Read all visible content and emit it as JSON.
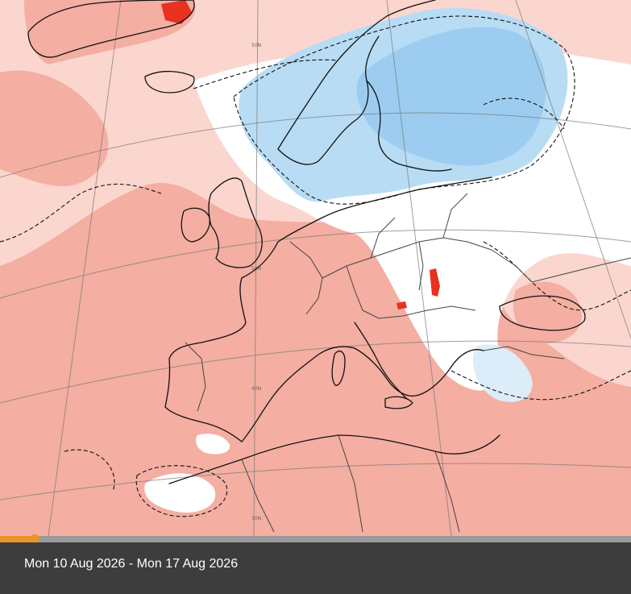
{
  "map": {
    "colors": {
      "strong_warm": "#ee8a7a",
      "warm": "#f4aea2",
      "slight_warm": "#fbd6cf",
      "neutral": "#ffffff",
      "slight_cool": "#dcedf9",
      "cool": "#b8dcf4",
      "strong_cool": "#9ccdf0",
      "extreme_warm": "#e6321e"
    },
    "graticule_labels": [
      "50N",
      "50N",
      "40N",
      "30N"
    ]
  },
  "timeline": {
    "progress": 0.055,
    "color": "#e8962a"
  },
  "caption": {
    "date_range": "Mon 10 Aug 2026 - Mon 17 Aug 2026"
  }
}
